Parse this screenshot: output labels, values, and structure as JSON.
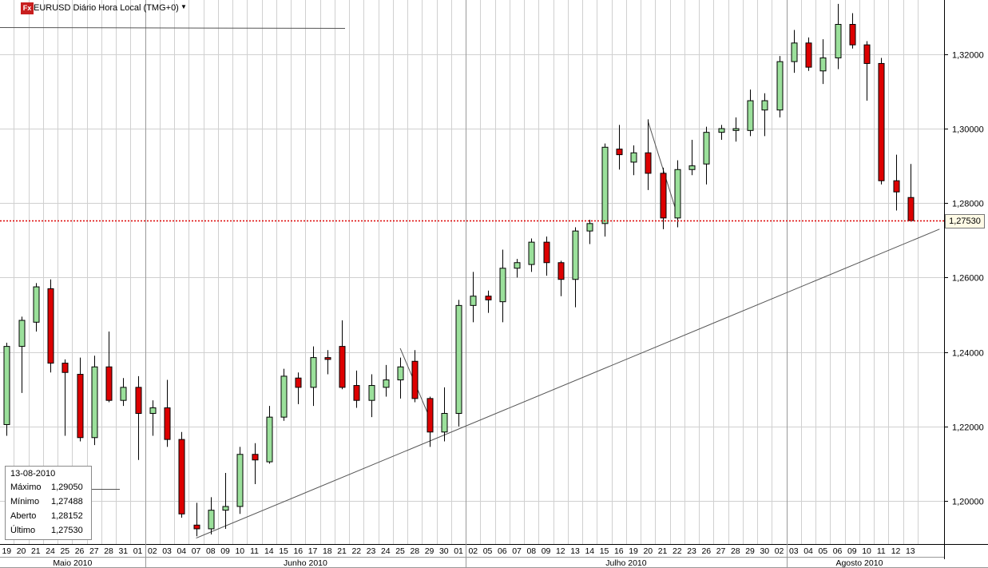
{
  "title": "EURUSD Diário Hora Local (TMG+0)",
  "icon": "fx-icon",
  "dropdown_icon": "dropdown-triangle-icon",
  "info_box": {
    "date": "13-08-2010",
    "rows": [
      {
        "label": "Máximo",
        "value": "1,29050"
      },
      {
        "label": "Mínimo",
        "value": "1,27488"
      },
      {
        "label": "Aberto",
        "value": "1,28152"
      },
      {
        "label": "Último",
        "value": "1,27530"
      }
    ]
  },
  "current_price_label": "1,27530",
  "colors": {
    "up": "#9be09b",
    "down": "#dd0000",
    "grid": "#d0d0d0",
    "current_line": "#dd0000"
  },
  "chart_data": {
    "type": "candlestick",
    "title": "EURUSD Diário Hora Local (TMG+0)",
    "y_ticks": [
      "1,20000",
      "1,22000",
      "1,24000",
      "1,26000",
      "1,28000",
      "1,30000",
      "1,32000"
    ],
    "y_tick_values": [
      1.2,
      1.22,
      1.24,
      1.26,
      1.28,
      1.3,
      1.32
    ],
    "ylim": [
      1.1905,
      1.3352
    ],
    "current_price": 1.2753,
    "months": [
      {
        "label": "Maio 2010",
        "start": 0,
        "end": 9
      },
      {
        "label": "Junho 2010",
        "start": 10,
        "end": 31
      },
      {
        "label": "Julho 2010",
        "start": 32,
        "end": 53
      },
      {
        "label": "Agosto 2010",
        "start": 54,
        "end": 63
      }
    ],
    "days": [
      "19",
      "20",
      "21",
      "24",
      "25",
      "26",
      "27",
      "28",
      "31",
      "01",
      "02",
      "03",
      "04",
      "07",
      "08",
      "09",
      "10",
      "11",
      "14",
      "15",
      "16",
      "17",
      "18",
      "21",
      "22",
      "23",
      "24",
      "25",
      "28",
      "29",
      "30",
      "01",
      "02",
      "05",
      "06",
      "07",
      "08",
      "09",
      "12",
      "13",
      "14",
      "15",
      "16",
      "19",
      "20",
      "21",
      "22",
      "23",
      "26",
      "27",
      "28",
      "29",
      "30",
      "02",
      "03",
      "04",
      "05",
      "06",
      "09",
      "10",
      "11",
      "12",
      "13"
    ],
    "candles": [
      {
        "o": 1.2205,
        "h": 1.2425,
        "l": 1.2175,
        "c": 1.2415
      },
      {
        "o": 1.2415,
        "h": 1.2495,
        "l": 1.229,
        "c": 1.2485
      },
      {
        "o": 1.248,
        "h": 1.2585,
        "l": 1.2455,
        "c": 1.2575
      },
      {
        "o": 1.257,
        "h": 1.2595,
        "l": 1.2345,
        "c": 1.237
      },
      {
        "o": 1.237,
        "h": 1.238,
        "l": 1.2175,
        "c": 1.2345
      },
      {
        "o": 1.234,
        "h": 1.2385,
        "l": 1.216,
        "c": 1.217
      },
      {
        "o": 1.217,
        "h": 1.239,
        "l": 1.215,
        "c": 1.236
      },
      {
        "o": 1.236,
        "h": 1.2455,
        "l": 1.2265,
        "c": 1.227
      },
      {
        "o": 1.227,
        "h": 1.233,
        "l": 1.2255,
        "c": 1.2305
      },
      {
        "o": 1.2305,
        "h": 1.2335,
        "l": 1.211,
        "c": 1.2235
      },
      {
        "o": 1.2235,
        "h": 1.227,
        "l": 1.2175,
        "c": 1.225
      },
      {
        "o": 1.225,
        "h": 1.2325,
        "l": 1.2145,
        "c": 1.2165
      },
      {
        "o": 1.2165,
        "h": 1.2185,
        "l": 1.1955,
        "c": 1.1965
      },
      {
        "o": 1.1935,
        "h": 1.1995,
        "l": 1.1905,
        "c": 1.1925
      },
      {
        "o": 1.1925,
        "h": 1.201,
        "l": 1.191,
        "c": 1.1975
      },
      {
        "o": 1.1975,
        "h": 1.2075,
        "l": 1.1925,
        "c": 1.1985
      },
      {
        "o": 1.1985,
        "h": 1.2145,
        "l": 1.1965,
        "c": 1.2125
      },
      {
        "o": 1.2125,
        "h": 1.2155,
        "l": 1.2045,
        "c": 1.211
      },
      {
        "o": 1.2105,
        "h": 1.2255,
        "l": 1.21,
        "c": 1.2225
      },
      {
        "o": 1.2225,
        "h": 1.2355,
        "l": 1.2215,
        "c": 1.2335
      },
      {
        "o": 1.233,
        "h": 1.2345,
        "l": 1.226,
        "c": 1.2305
      },
      {
        "o": 1.2305,
        "h": 1.2415,
        "l": 1.2255,
        "c": 1.2385
      },
      {
        "o": 1.2385,
        "h": 1.2405,
        "l": 1.234,
        "c": 1.238
      },
      {
        "o": 1.2415,
        "h": 1.2485,
        "l": 1.23,
        "c": 1.2305
      },
      {
        "o": 1.231,
        "h": 1.235,
        "l": 1.225,
        "c": 1.227
      },
      {
        "o": 1.227,
        "h": 1.234,
        "l": 1.2225,
        "c": 1.231
      },
      {
        "o": 1.2305,
        "h": 1.2365,
        "l": 1.228,
        "c": 1.2325
      },
      {
        "o": 1.2325,
        "h": 1.2385,
        "l": 1.2275,
        "c": 1.236
      },
      {
        "o": 1.2375,
        "h": 1.2405,
        "l": 1.2265,
        "c": 1.2275
      },
      {
        "o": 1.2275,
        "h": 1.228,
        "l": 1.2145,
        "c": 1.2185
      },
      {
        "o": 1.2185,
        "h": 1.2305,
        "l": 1.216,
        "c": 1.2235
      },
      {
        "o": 1.2235,
        "h": 1.254,
        "l": 1.22,
        "c": 1.2525
      },
      {
        "o": 1.2525,
        "h": 1.2615,
        "l": 1.248,
        "c": 1.255
      },
      {
        "o": 1.255,
        "h": 1.2565,
        "l": 1.2505,
        "c": 1.254
      },
      {
        "o": 1.2535,
        "h": 1.2675,
        "l": 1.248,
        "c": 1.2625
      },
      {
        "o": 1.2625,
        "h": 1.265,
        "l": 1.26,
        "c": 1.264
      },
      {
        "o": 1.2635,
        "h": 1.2705,
        "l": 1.2615,
        "c": 1.2695
      },
      {
        "o": 1.2695,
        "h": 1.271,
        "l": 1.2605,
        "c": 1.264
      },
      {
        "o": 1.264,
        "h": 1.2645,
        "l": 1.255,
        "c": 1.2595
      },
      {
        "o": 1.2595,
        "h": 1.2735,
        "l": 1.252,
        "c": 1.2725
      },
      {
        "o": 1.2725,
        "h": 1.2755,
        "l": 1.269,
        "c": 1.2745
      },
      {
        "o": 1.2745,
        "h": 1.296,
        "l": 1.271,
        "c": 1.295
      },
      {
        "o": 1.2945,
        "h": 1.301,
        "l": 1.289,
        "c": 1.293
      },
      {
        "o": 1.291,
        "h": 1.2955,
        "l": 1.2875,
        "c": 1.2935
      },
      {
        "o": 1.2935,
        "h": 1.3025,
        "l": 1.2835,
        "c": 1.288
      },
      {
        "o": 1.288,
        "h": 1.2895,
        "l": 1.273,
        "c": 1.276
      },
      {
        "o": 1.276,
        "h": 1.2915,
        "l": 1.2735,
        "c": 1.289
      },
      {
        "o": 1.289,
        "h": 1.297,
        "l": 1.2875,
        "c": 1.29
      },
      {
        "o": 1.2905,
        "h": 1.3005,
        "l": 1.285,
        "c": 1.299
      },
      {
        "o": 1.299,
        "h": 1.301,
        "l": 1.297,
        "c": 1.3
      },
      {
        "o": 1.2995,
        "h": 1.303,
        "l": 1.2965,
        "c": 1.3
      },
      {
        "o": 1.2995,
        "h": 1.3105,
        "l": 1.298,
        "c": 1.3075
      },
      {
        "o": 1.305,
        "h": 1.3095,
        "l": 1.298,
        "c": 1.3075
      },
      {
        "o": 1.305,
        "h": 1.3195,
        "l": 1.303,
        "c": 1.318
      },
      {
        "o": 1.318,
        "h": 1.3265,
        "l": 1.315,
        "c": 1.323
      },
      {
        "o": 1.323,
        "h": 1.3245,
        "l": 1.3155,
        "c": 1.3165
      },
      {
        "o": 1.3155,
        "h": 1.324,
        "l": 1.312,
        "c": 1.319
      },
      {
        "o": 1.319,
        "h": 1.3335,
        "l": 1.316,
        "c": 1.328
      },
      {
        "o": 1.328,
        "h": 1.331,
        "l": 1.3215,
        "c": 1.3225
      },
      {
        "o": 1.3225,
        "h": 1.3235,
        "l": 1.3075,
        "c": 1.3175
      },
      {
        "o": 1.3175,
        "h": 1.319,
        "l": 1.285,
        "c": 1.286
      },
      {
        "o": 1.286,
        "h": 1.293,
        "l": 1.278,
        "c": 1.283
      },
      {
        "o": 1.2815,
        "h": 1.2905,
        "l": 1.275,
        "c": 1.2753
      }
    ],
    "trendlines": [
      {
        "from": {
          "index": 13,
          "price": 1.19
        },
        "to": {
          "index": 64,
          "price": 1.273
        }
      },
      {
        "from": {
          "index": 27,
          "price": 1.241
        },
        "to": {
          "index": 29,
          "price": 1.2225
        }
      },
      {
        "from": {
          "index": 44,
          "price": 1.302
        },
        "to": {
          "index": 46,
          "price": 1.277
        }
      }
    ]
  }
}
